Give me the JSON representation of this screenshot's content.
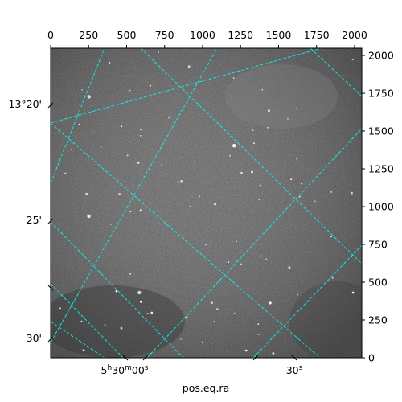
{
  "chart_data": {
    "type": "heatmap",
    "description_kind": "astronomical image with WCS coordinate grid overlay",
    "colormap": "gray",
    "grid": true,
    "grid_color": "#00ffff",
    "grid_style": "dashed",
    "pixel_axis_top": {
      "lim": [
        0,
        2048
      ],
      "ticks": [
        0,
        250,
        500,
        750,
        1000,
        1250,
        1500,
        1750,
        2000
      ],
      "tick_labels": [
        "0",
        "250",
        "500",
        "750",
        "1000",
        "1250",
        "1500",
        "1750",
        "2000"
      ]
    },
    "pixel_axis_right": {
      "lim": [
        0,
        2048
      ],
      "ticks": [
        0,
        250,
        500,
        750,
        1000,
        1250,
        1500,
        1750,
        2000
      ],
      "tick_labels": [
        "0",
        "250",
        "500",
        "750",
        "1000",
        "1250",
        "1500",
        "1750",
        "2000"
      ]
    },
    "world_axis_left": {
      "coordinate": "dec",
      "tick_labels": [
        "13°20'",
        "25'",
        "30'"
      ]
    },
    "world_axis_bottom": {
      "coordinate": "ra",
      "tick_labels": [
        "5h30m00s",
        "30s"
      ]
    },
    "xlabel": "pos.eq.ra",
    "ylabel": ""
  }
}
